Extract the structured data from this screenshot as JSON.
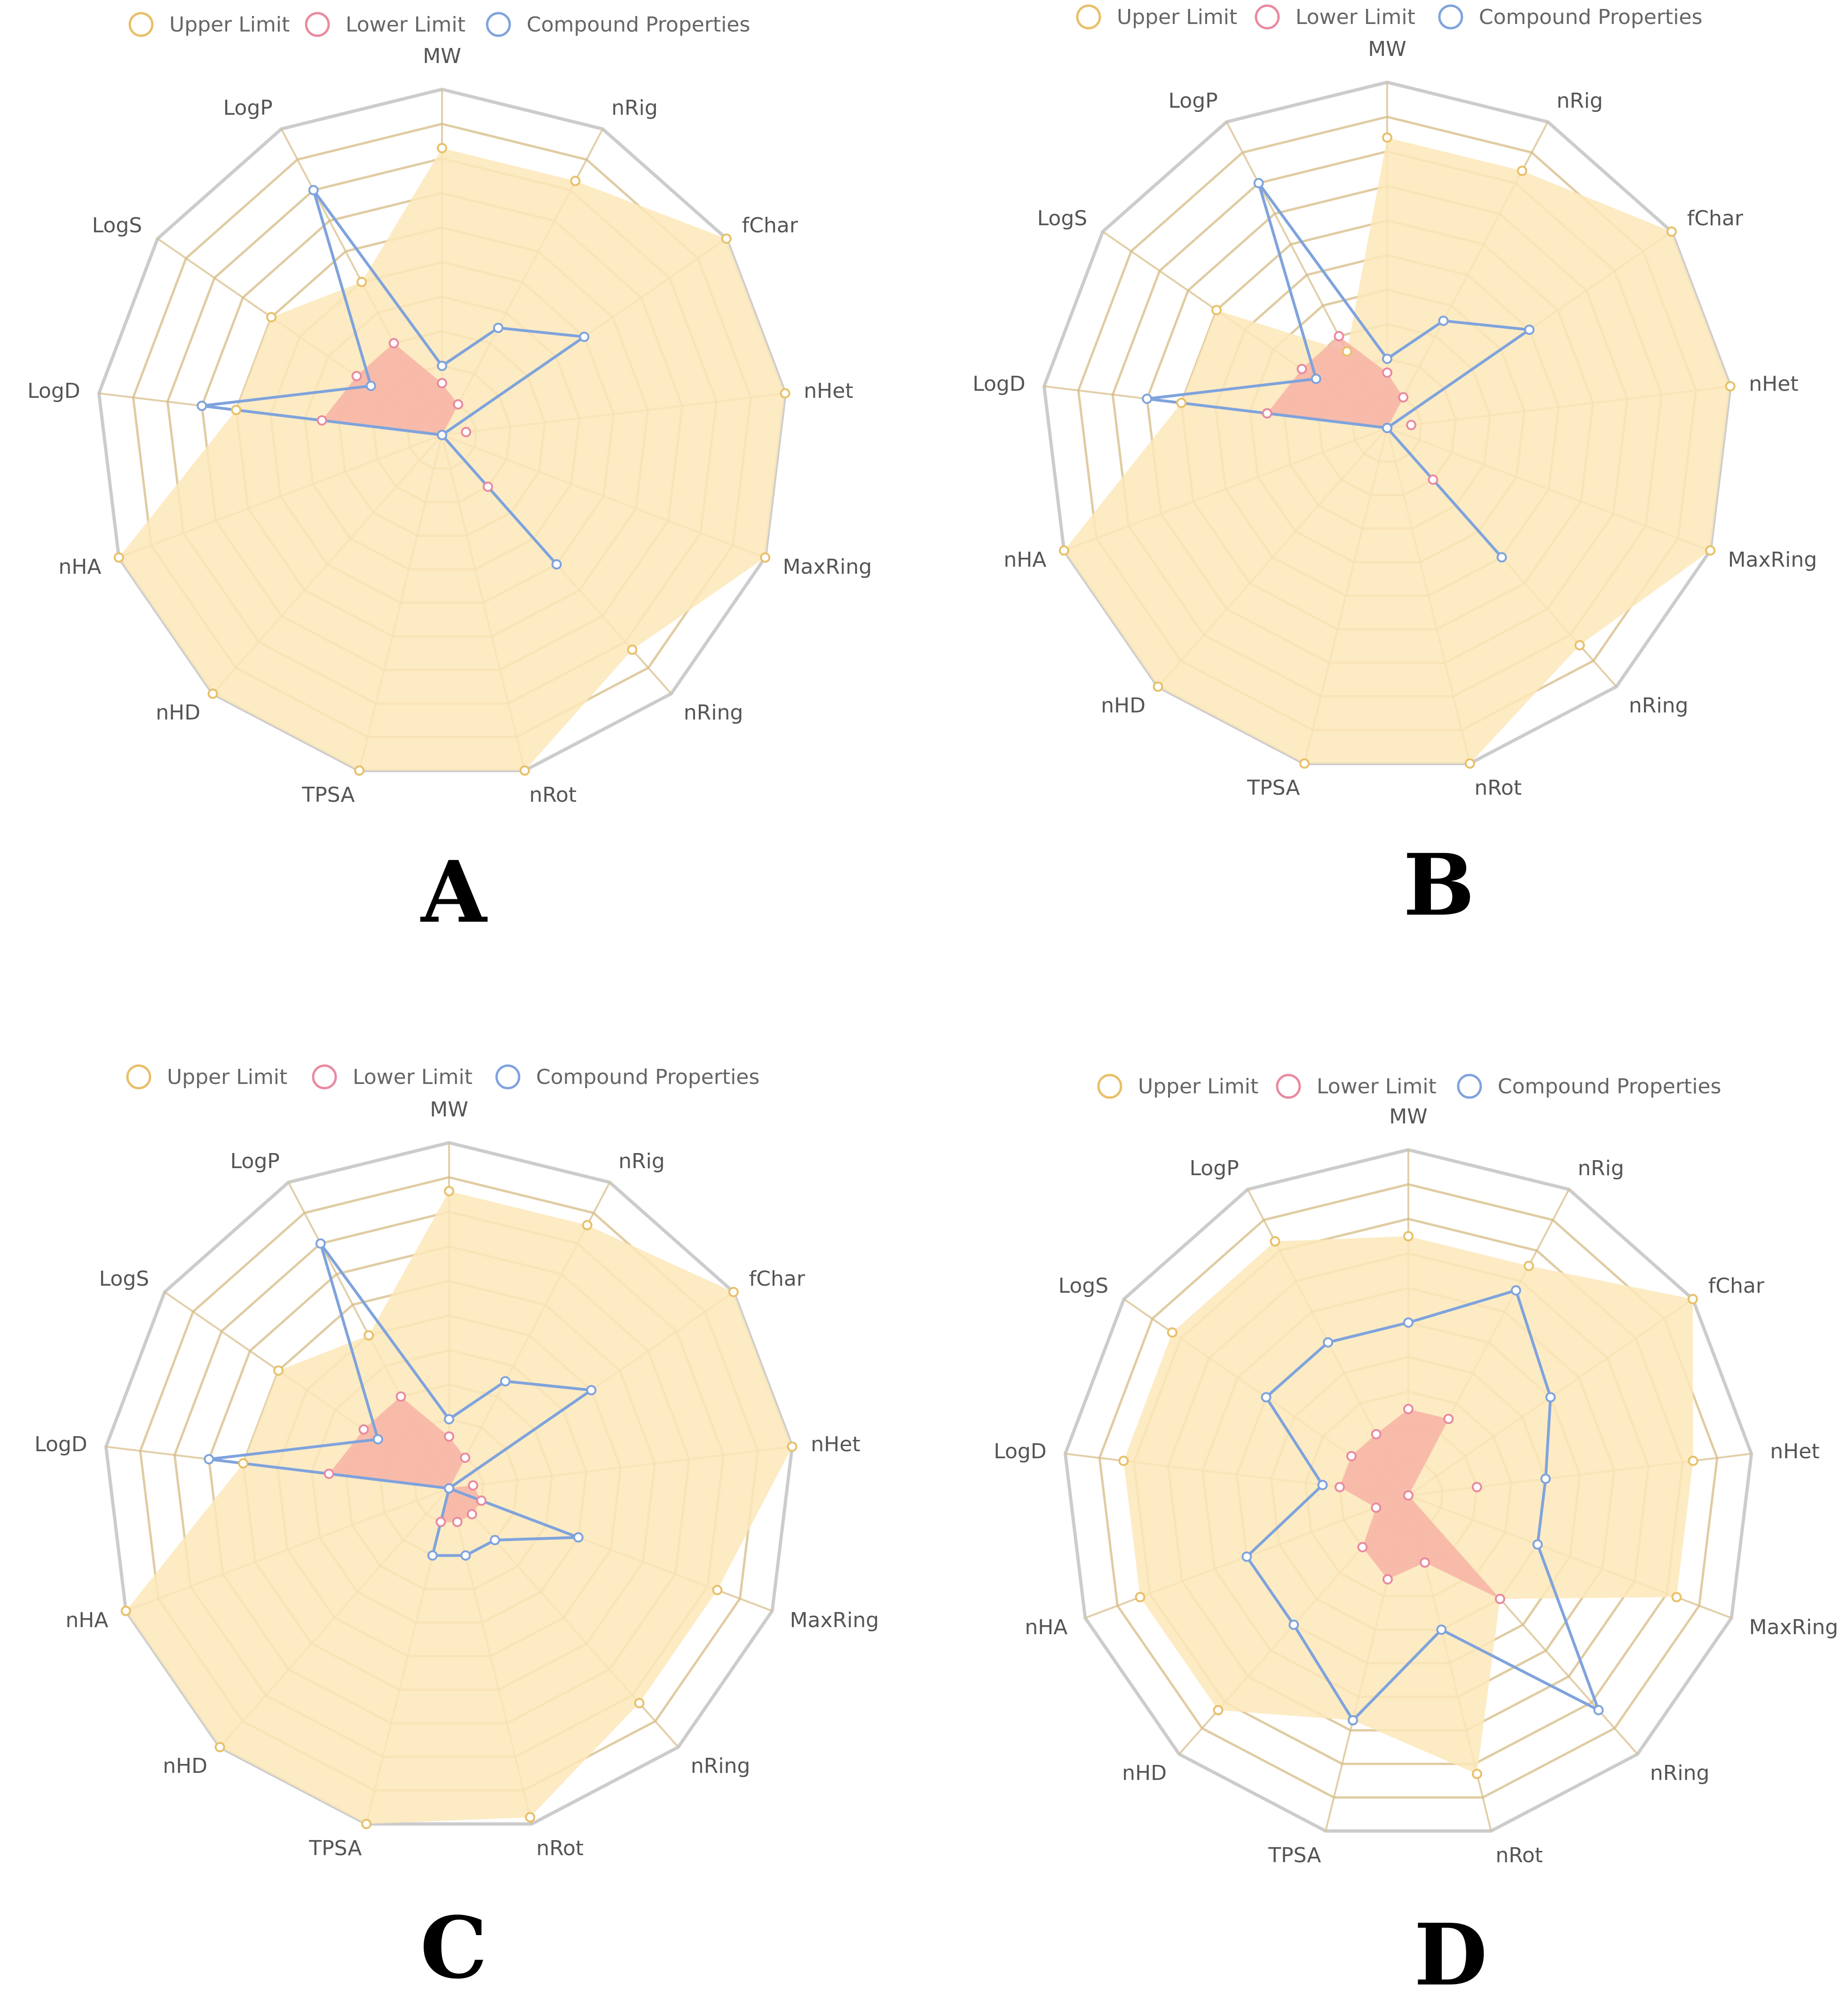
{
  "colors": {
    "upper_fill": "#fde7ba",
    "upper_stroke": "#e8c068",
    "lower_fill": "#f7b3a6",
    "lower_stroke": "#e98aa0",
    "compound": "#7fa3dc",
    "grid_outer": "#cccccc",
    "grid_inner": "#d6bb84"
  },
  "legend": {
    "upper": "Upper Limit",
    "lower": "Lower Limit",
    "compound": "Compound Properties"
  },
  "chart_data": [
    {
      "type": "radar",
      "panel": "A",
      "axes": [
        "MW",
        "nRig",
        "fChar",
        "nHet",
        "MaxRing",
        "nRing",
        "nRot",
        "TPSA",
        "nHD",
        "nHA",
        "LogD",
        "LogS",
        "LogP"
      ],
      "max": 1,
      "series": [
        {
          "name": "Upper Limit",
          "values": [
            0.83,
            0.83,
            1.0,
            1.0,
            1.0,
            0.83,
            1.0,
            1.0,
            1.0,
            1.0,
            0.6,
            0.6,
            0.5
          ]
        },
        {
          "name": "Lower Limit",
          "values": [
            0.15,
            0.1,
            0.0,
            0.07,
            0.0,
            0.2,
            0.0,
            0.0,
            0.0,
            0.0,
            0.35,
            0.3,
            0.3
          ]
        },
        {
          "name": "Compound Properties",
          "values": [
            0.2,
            0.35,
            0.5,
            0.0,
            0.0,
            0.5,
            0.0,
            0.0,
            0.0,
            0.0,
            0.7,
            0.25,
            0.8
          ]
        }
      ]
    },
    {
      "type": "radar",
      "panel": "B",
      "axes": [
        "MW",
        "nRig",
        "fChar",
        "nHet",
        "MaxRing",
        "nRing",
        "nRot",
        "TPSA",
        "nHD",
        "nHA",
        "LogD",
        "LogS",
        "LogP"
      ],
      "max": 1,
      "series": [
        {
          "name": "Upper Limit",
          "values": [
            0.84,
            0.84,
            1.0,
            1.0,
            1.0,
            0.84,
            1.0,
            1.0,
            1.0,
            1.0,
            0.6,
            0.6,
            0.25
          ]
        },
        {
          "name": "Lower Limit",
          "values": [
            0.16,
            0.1,
            0.0,
            0.07,
            0.0,
            0.2,
            0.0,
            0.0,
            0.0,
            0.0,
            0.35,
            0.3,
            0.3
          ]
        },
        {
          "name": "Compound Properties",
          "values": [
            0.2,
            0.35,
            0.5,
            0.0,
            0.0,
            0.5,
            0.0,
            0.0,
            0.0,
            0.0,
            0.7,
            0.25,
            0.8
          ]
        }
      ]
    },
    {
      "type": "radar",
      "panel": "C",
      "axes": [
        "MW",
        "nRig",
        "fChar",
        "nHet",
        "MaxRing",
        "nRing",
        "nRot",
        "TPSA",
        "nHD",
        "nHA",
        "LogD",
        "LogS",
        "LogP"
      ],
      "max": 1,
      "series": [
        {
          "name": "Upper Limit",
          "values": [
            0.86,
            0.86,
            1.0,
            1.0,
            0.83,
            0.83,
            0.98,
            1.0,
            1.0,
            1.0,
            0.6,
            0.6,
            0.5
          ]
        },
        {
          "name": "Lower Limit",
          "values": [
            0.15,
            0.1,
            0.0,
            0.07,
            0.1,
            0.1,
            0.1,
            0.1,
            0.0,
            0.0,
            0.35,
            0.3,
            0.3
          ]
        },
        {
          "name": "Compound Properties",
          "values": [
            0.2,
            0.35,
            0.5,
            0.0,
            0.4,
            0.2,
            0.2,
            0.2,
            0.0,
            0.0,
            0.7,
            0.25,
            0.8
          ]
        }
      ]
    },
    {
      "type": "radar",
      "panel": "D",
      "axes": [
        "MW",
        "nRig",
        "fChar",
        "nHet",
        "MaxRing",
        "nRing",
        "nRot",
        "TPSA",
        "nHD",
        "nHA",
        "LogD",
        "LogS",
        "LogP"
      ],
      "max": 1,
      "series": [
        {
          "name": "Upper Limit",
          "values": [
            0.75,
            0.75,
            1.0,
            0.83,
            0.83,
            0.4,
            0.83,
            0.67,
            0.83,
            0.83,
            0.83,
            0.83,
            0.83
          ]
        },
        {
          "name": "Lower Limit",
          "values": [
            0.25,
            0.25,
            0.0,
            0.2,
            0.0,
            0.4,
            0.2,
            0.25,
            0.2,
            0.1,
            0.2,
            0.2,
            0.2
          ]
        },
        {
          "name": "Compound Properties",
          "values": [
            0.5,
            0.67,
            0.5,
            0.4,
            0.4,
            0.83,
            0.4,
            0.67,
            0.5,
            0.5,
            0.25,
            0.5,
            0.5
          ]
        }
      ]
    }
  ]
}
